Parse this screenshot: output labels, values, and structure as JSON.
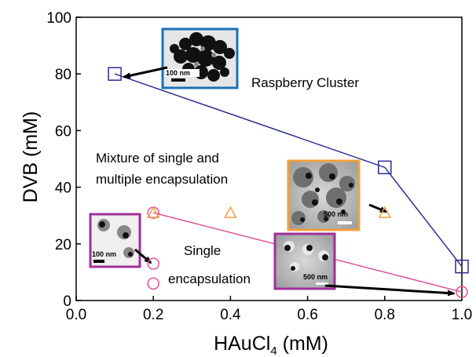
{
  "chart_data": {
    "type": "scatter",
    "xlabel_main": "HAuCl",
    "xlabel_sub": "4",
    "xlabel_unit": " (mM)",
    "ylabel": "DVB (mM)",
    "xlim": [
      0.0,
      1.0
    ],
    "ylim": [
      0,
      100
    ],
    "xticks": [
      "0.0",
      "0.2",
      "0.4",
      "0.6",
      "0.8",
      "1.0"
    ],
    "yticks": [
      "0",
      "20",
      "40",
      "60",
      "80",
      "100"
    ],
    "grid": false,
    "series": [
      {
        "marker": "square",
        "color": "#2b2f8f",
        "connected": true,
        "points": [
          [
            0.1,
            80
          ],
          [
            0.8,
            47
          ],
          [
            1.0,
            12
          ]
        ]
      },
      {
        "marker": "circle",
        "color": "#e0509a",
        "connected": false,
        "points": [
          [
            0.2,
            31
          ],
          [
            0.2,
            13
          ],
          [
            0.2,
            6
          ],
          [
            1.0,
            3
          ]
        ]
      },
      {
        "marker": "triangle",
        "color": "#f0a040",
        "connected": false,
        "points": [
          [
            0.2,
            31
          ],
          [
            0.4,
            31
          ],
          [
            0.8,
            31
          ]
        ]
      }
    ],
    "boundary_line": {
      "color": "#e0509a",
      "points": [
        [
          0.2,
          31
        ],
        [
          1.0,
          3
        ]
      ]
    },
    "annotations": {
      "raspberry": "Raspberry Cluster",
      "mixture_line1": "Mixture of single and",
      "mixture_line2": "multiple encapsulation",
      "single_line1": "Single",
      "single_line2": "encapsulation"
    },
    "insets": [
      {
        "name": "tem-inset-raspberry",
        "border": "#1a72b8",
        "scale_label": "100 nm",
        "arrow_to": [
          0.1,
          80
        ]
      },
      {
        "name": "tem-inset-mixture",
        "border": "#f0a040",
        "scale_label": "500 nm",
        "arrow_to": [
          0.8,
          31
        ]
      },
      {
        "name": "tem-inset-single-small",
        "border": "#a0309a",
        "scale_label": "100 nm",
        "arrow_to": [
          0.2,
          13
        ]
      },
      {
        "name": "tem-inset-single-large",
        "border": "#a0309a",
        "scale_label": "500 nm",
        "arrow_to": [
          1.0,
          3
        ]
      }
    ]
  }
}
